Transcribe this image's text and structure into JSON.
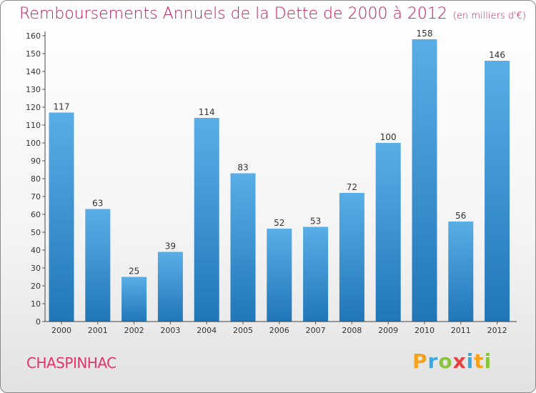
{
  "header": {
    "title": "Remboursements Annuels de la Dette de 2000 à 2012",
    "unit": "(en milliers d'€)"
  },
  "footer": {
    "commune": "CHASPINHAC",
    "logo_letters": [
      "P",
      "r",
      "o",
      "x",
      "i",
      "t",
      "i"
    ]
  },
  "colors": {
    "bar_top": "#5aaee6",
    "bar_bottom": "#2176b8",
    "title": "#c2185b",
    "commune": "#e0356b"
  },
  "chart_data": {
    "type": "bar",
    "title": "Remboursements Annuels de la Dette de 2000 à 2012",
    "xlabel": "",
    "ylabel": "",
    "categories": [
      "2000",
      "2001",
      "2002",
      "2003",
      "2004",
      "2005",
      "2006",
      "2007",
      "2008",
      "2009",
      "2010",
      "2011",
      "2012"
    ],
    "values": [
      117,
      63,
      25,
      39,
      114,
      83,
      52,
      53,
      72,
      100,
      158,
      56,
      146
    ],
    "ylim": [
      0,
      160
    ],
    "yticks": [
      0,
      10,
      20,
      30,
      40,
      50,
      60,
      70,
      80,
      90,
      100,
      110,
      120,
      130,
      140,
      150,
      160
    ],
    "grid": false,
    "legend": "none"
  }
}
